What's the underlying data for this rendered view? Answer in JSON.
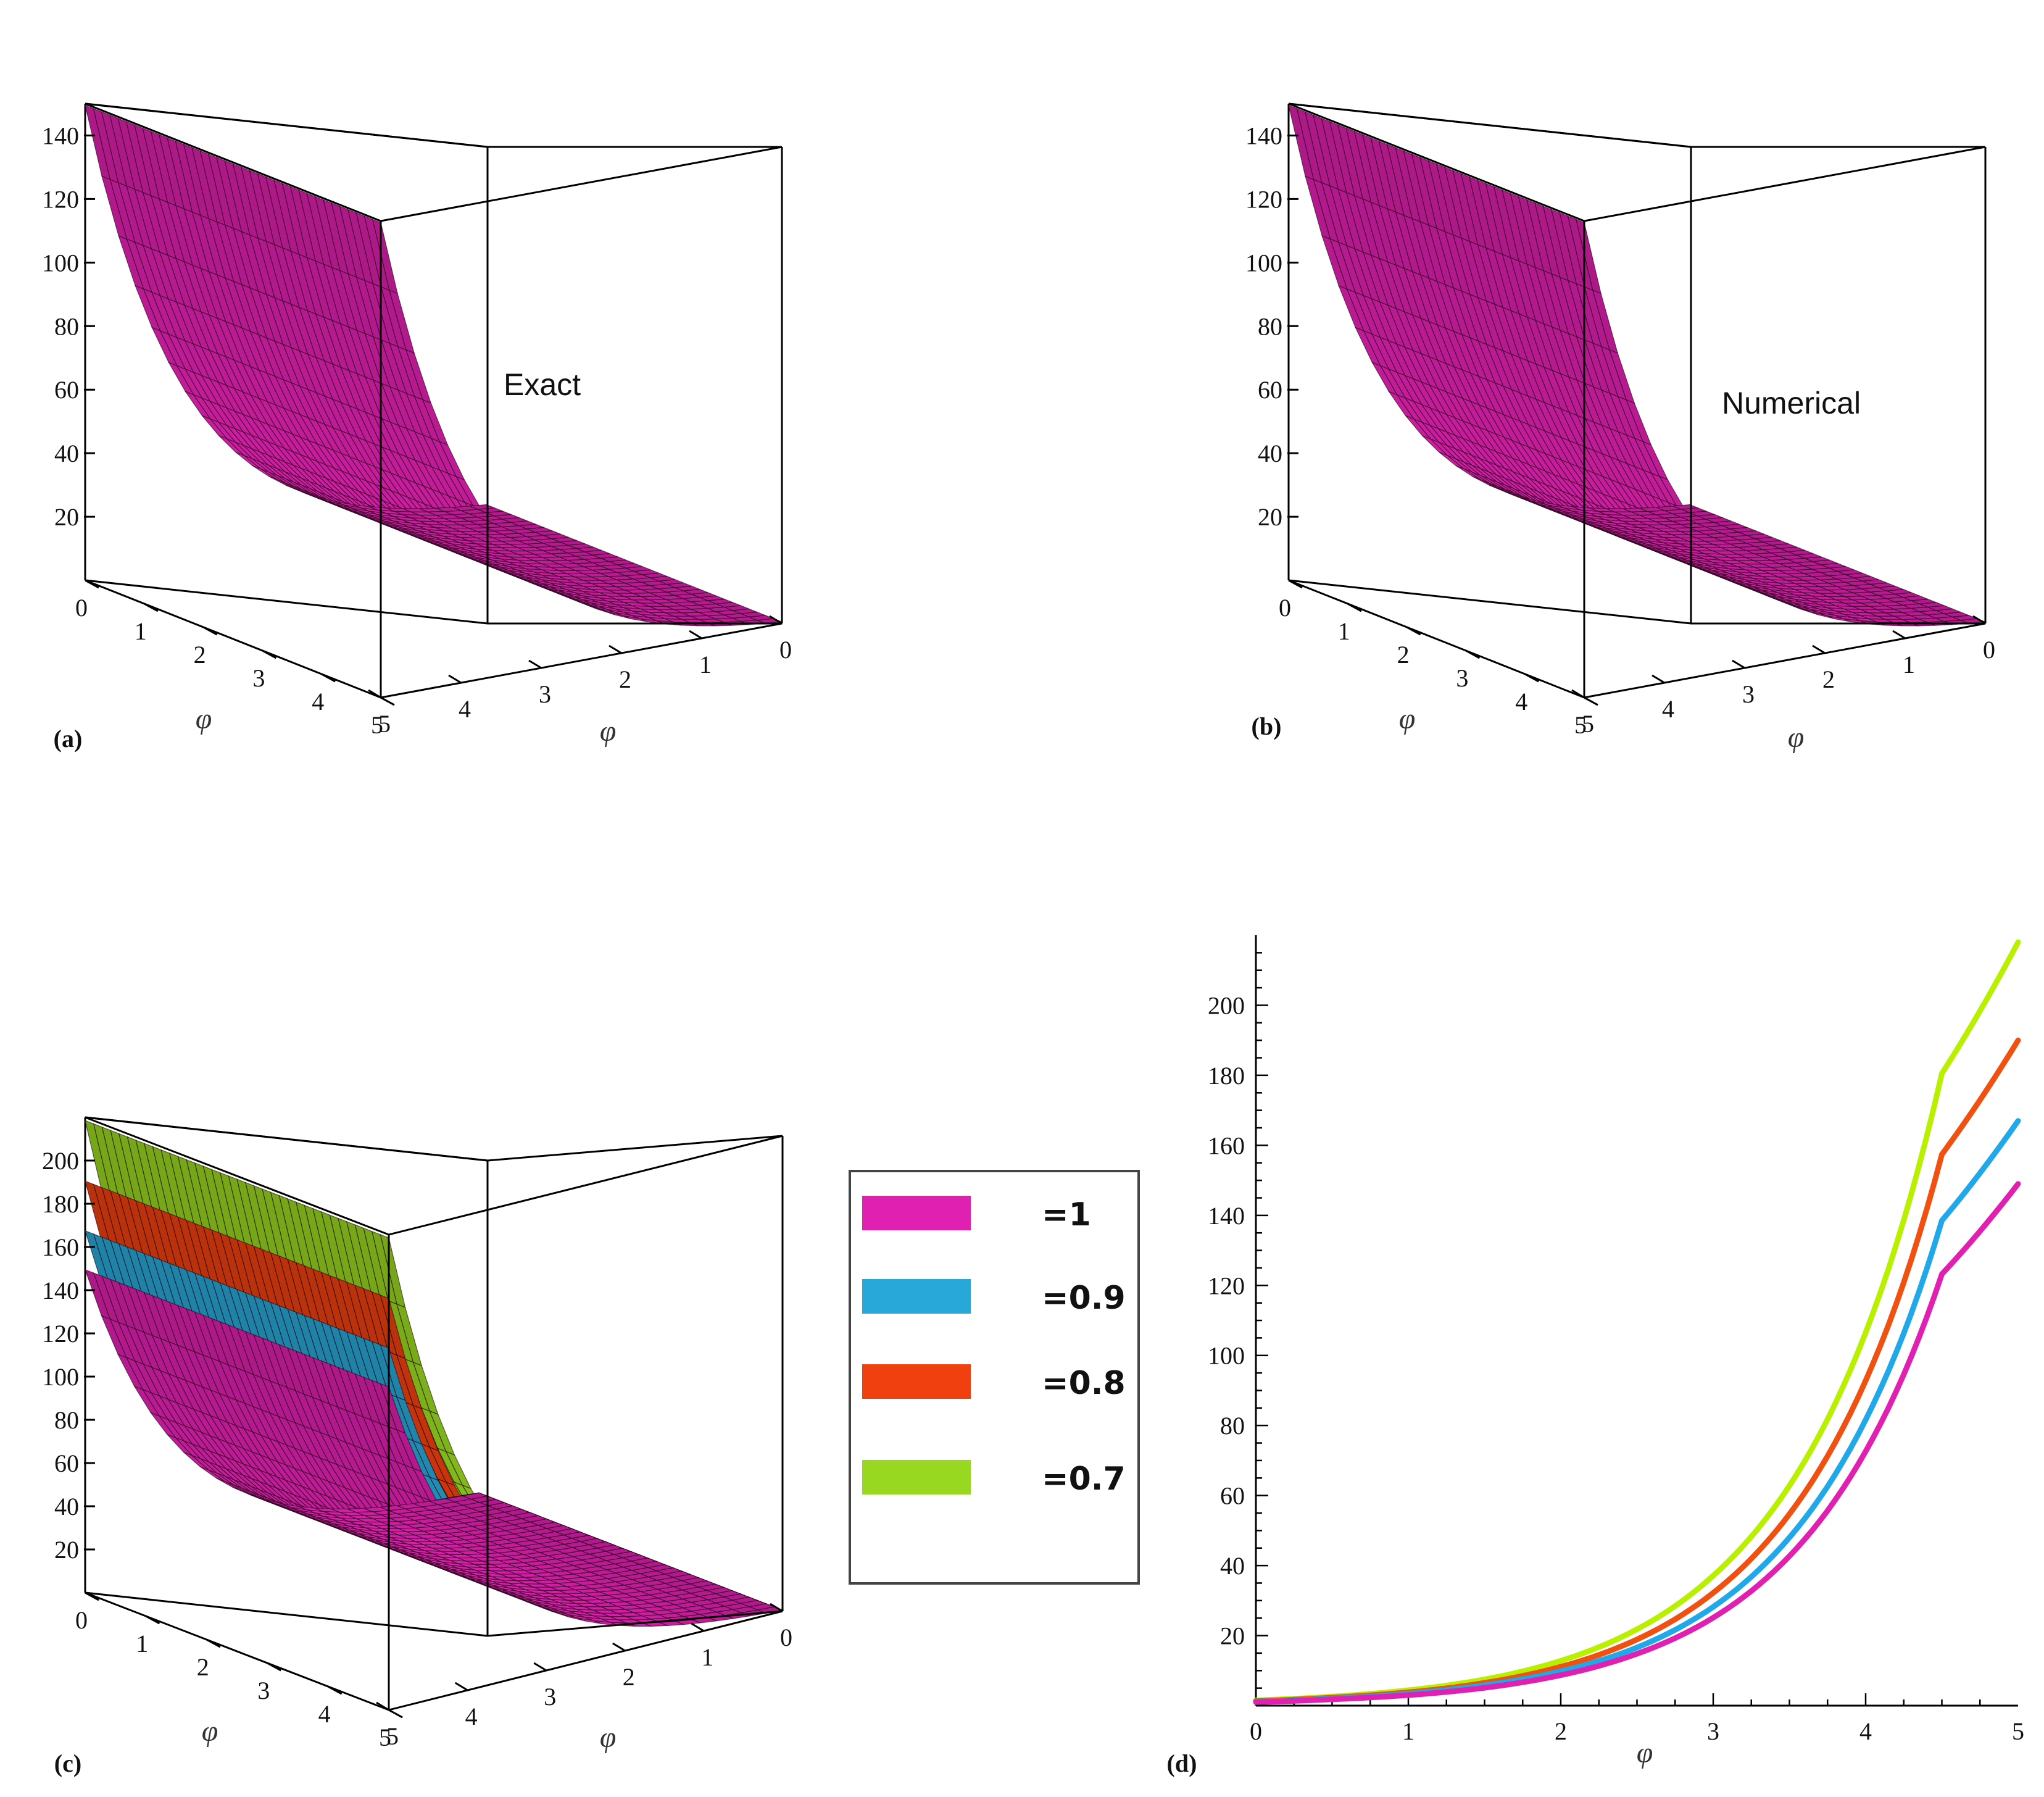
{
  "chart_data": [
    {
      "panel": "(a)",
      "type": "surface3d",
      "annotation": "Exact",
      "x_axis": {
        "label": "φ",
        "ticks": [
          "0",
          "1",
          "2",
          "3",
          "4",
          "5"
        ]
      },
      "y_axis": {
        "label": "φ",
        "ticks": [
          "0",
          "1",
          "2",
          "3",
          "4",
          "5"
        ]
      },
      "z_axis": {
        "ticks": [
          "20",
          "40",
          "60",
          "80",
          "100",
          "120",
          "140"
        ],
        "range": [
          0,
          150
        ]
      },
      "series": [
        {
          "color": "#e020b0",
          "z_max": 149
        }
      ]
    },
    {
      "panel": "(b)",
      "type": "surface3d",
      "annotation": "Numerical",
      "x_axis": {
        "label": "φ",
        "ticks": [
          "0",
          "1",
          "2",
          "3",
          "4",
          "5"
        ]
      },
      "y_axis": {
        "label": "φ",
        "ticks": [
          "0",
          "1",
          "2",
          "3",
          "4",
          "5"
        ]
      },
      "z_axis": {
        "ticks": [
          "20",
          "40",
          "60",
          "80",
          "100",
          "120",
          "140"
        ],
        "range": [
          0,
          150
        ]
      },
      "series": [
        {
          "color": "#e020b0",
          "z_max": 149
        }
      ]
    },
    {
      "panel": "(c)",
      "type": "surface3d",
      "x_axis": {
        "label": "φ",
        "ticks": [
          "0",
          "1",
          "2",
          "3",
          "4",
          "5"
        ]
      },
      "y_axis": {
        "label": "φ",
        "ticks": [
          "0",
          "1",
          "2",
          "3",
          "4",
          "5"
        ]
      },
      "z_axis": {
        "ticks": [
          "20",
          "40",
          "60",
          "80",
          "100",
          "120",
          "140",
          "160",
          "180",
          "200"
        ],
        "range": [
          0,
          220
        ]
      },
      "series": [
        {
          "name": "=1",
          "color": "#e020b0",
          "z_max": 149
        },
        {
          "name": "=0.9",
          "color": "#28a8d8",
          "z_max": 167
        },
        {
          "name": "=0.8",
          "color": "#f04010",
          "z_max": 190
        },
        {
          "name": "=0.7",
          "color": "#98d820",
          "z_max": 218
        }
      ]
    },
    {
      "panel": "(d)",
      "type": "line",
      "xlabel": "φ",
      "x_ticks": [
        "0",
        "1",
        "2",
        "3",
        "4",
        "5"
      ],
      "y_ticks": [
        "20",
        "40",
        "60",
        "80",
        "100",
        "120",
        "140",
        "160",
        "180",
        "200"
      ],
      "xlim": [
        0,
        5
      ],
      "ylim": [
        0,
        220
      ],
      "x": [
        0,
        0.5,
        1,
        1.5,
        2,
        2.5,
        3,
        3.5,
        4,
        4.5,
        5
      ],
      "series": [
        {
          "color": "#b8f000",
          "values": [
            1.5,
            2.6,
            4.4,
            7.5,
            12.8,
            21.8,
            37.1,
            62.8,
            106.5,
            180.5,
            218
          ]
        },
        {
          "color": "#f05010",
          "values": [
            1.3,
            2.3,
            3.8,
            6.5,
            11.1,
            18.9,
            32.2,
            54.7,
            92.8,
            157.4,
            190
          ]
        },
        {
          "color": "#20a8e8",
          "values": [
            1.1,
            2.0,
            3.4,
            5.8,
            9.8,
            16.6,
            28.2,
            48.0,
            81.6,
            138.5,
            167
          ]
        },
        {
          "color": "#e020b0",
          "values": [
            1.0,
            1.8,
            3.0,
            5.1,
            8.7,
            14.8,
            25.1,
            42.7,
            72.6,
            123.2,
            149
          ]
        }
      ]
    }
  ]
}
